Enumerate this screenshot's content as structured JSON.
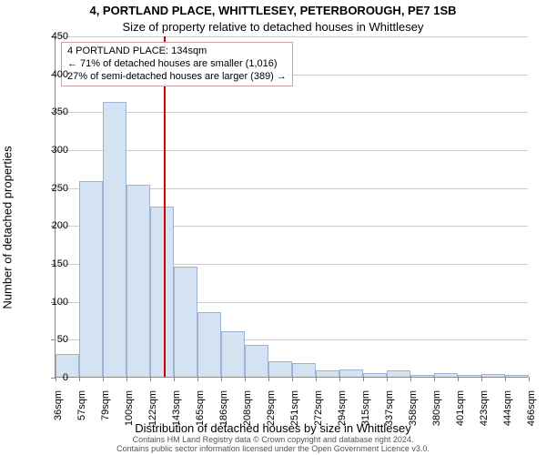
{
  "title_line1": "4, PORTLAND PLACE, WHITTLESEY, PETERBOROUGH, PE7 1SB",
  "title_line2": "Size of property relative to detached houses in Whittlesey",
  "ylabel": "Number of detached properties",
  "xlabel": "Distribution of detached houses by size in Whittlesey",
  "footnote_line1": "Contains HM Land Registry data © Crown copyright and database right 2024.",
  "footnote_line2": "Contains public sector information licensed under the Open Government Licence v3.0.",
  "annotation": {
    "line1": "4 PORTLAND PLACE: 134sqm",
    "line2": "← 71% of detached houses are smaller (1,016)",
    "line3": "27% of semi-detached houses are larger (389) →"
  },
  "chart": {
    "type": "histogram",
    "y": {
      "min": 0,
      "max": 450,
      "tick_step": 50,
      "ticks": [
        0,
        50,
        100,
        150,
        200,
        250,
        300,
        350,
        400,
        450
      ]
    },
    "x": {
      "tick_count": 21,
      "tick_step_label": 21.5,
      "tick_start": 36,
      "labels": [
        "36sqm",
        "57sqm",
        "79sqm",
        "100sqm",
        "122sqm",
        "143sqm",
        "165sqm",
        "186sqm",
        "208sqm",
        "229sqm",
        "251sqm",
        "272sqm",
        "294sqm",
        "315sqm",
        "337sqm",
        "358sqm",
        "380sqm",
        "401sqm",
        "423sqm",
        "444sqm",
        "466sqm"
      ]
    },
    "bars": {
      "values": [
        30,
        258,
        362,
        253,
        225,
        145,
        85,
        60,
        42,
        20,
        18,
        8,
        10,
        5,
        8,
        3,
        5,
        2,
        4,
        2
      ],
      "fill": "#d5e2f2",
      "stroke": "#9bb4d6",
      "count": 20,
      "width_ratio": 1.0
    },
    "reference_line": {
      "value_sqm": 134,
      "color": "#cc0000"
    },
    "grid_color": "#cccccc",
    "background": "#ffffff"
  }
}
